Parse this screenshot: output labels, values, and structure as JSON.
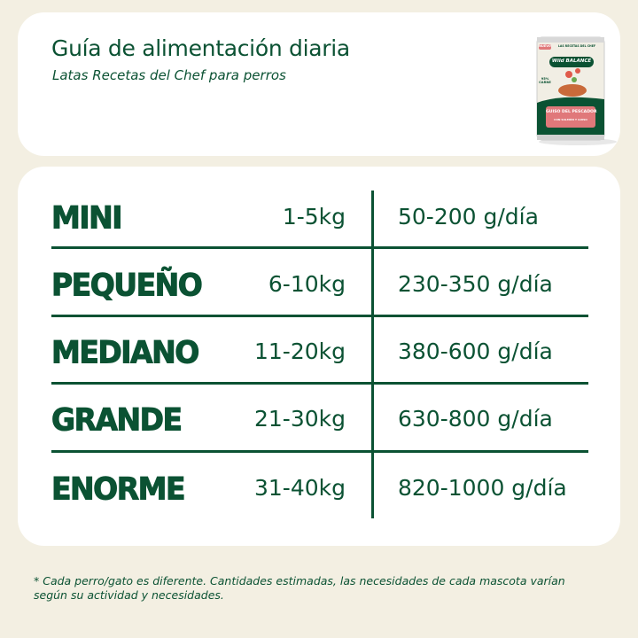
{
  "header": {
    "title": "Guía de alimentación diaria",
    "subtitle": "Latas Recetas del Chef para perros",
    "product_image": {
      "brand": "Wild BALANCE",
      "tagline": "LAS RECETAS DEL CHEF",
      "badge": "NUEVO",
      "recipe": "GUISO DEL PESCADOR",
      "detail": "CON SALMÓN Y GUISO",
      "claim": "95% CARNE"
    }
  },
  "table": {
    "rows": [
      {
        "size": "MINI",
        "weight": "1-5kg",
        "portion": "50-200 g/día"
      },
      {
        "size": "PEQUEÑO",
        "weight": "6-10kg",
        "portion": "230-350 g/día"
      },
      {
        "size": "MEDIANO",
        "weight": "11-20kg",
        "portion": "380-600 g/día"
      },
      {
        "size": "GRANDE",
        "weight": "21-30kg",
        "portion": "630-800 g/día"
      },
      {
        "size": "ENORME",
        "weight": "31-40kg",
        "portion": "820-1000 g/día"
      }
    ]
  },
  "footnote": "* Cada perro/gato es diferente. Cantidades estimadas, las necesidades de cada mascota varían según su actividad y necesidades.",
  "colors": {
    "brand_green": "#0b5233",
    "background": "#f3efe2",
    "card": "#ffffff",
    "can_red": "#e0787a"
  }
}
